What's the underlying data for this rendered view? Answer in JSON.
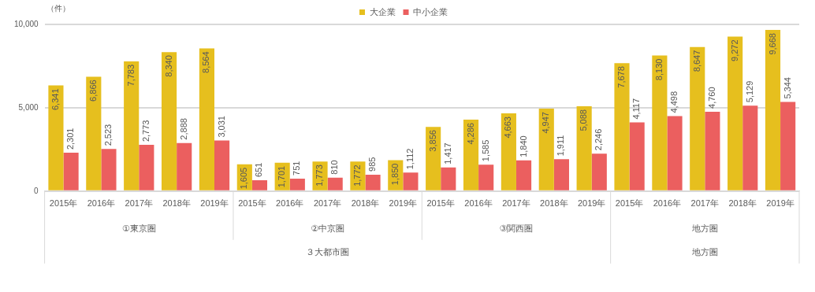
{
  "chart_data": {
    "type": "bar",
    "ylabel": "（件）",
    "categories": [
      "2015年",
      "2016年",
      "2017年",
      "2018年",
      "2019年",
      "2015年",
      "2016年",
      "2017年",
      "2018年",
      "2019年",
      "2015年",
      "2016年",
      "2017年",
      "2018年",
      "2019年",
      "2015年",
      "2016年",
      "2017年",
      "2018年",
      "2019年"
    ],
    "series": [
      {
        "name": "大企業",
        "color": "#e6bf1e",
        "values": [
          6341,
          6866,
          7783,
          8340,
          8564,
          1605,
          1701,
          1773,
          1772,
          1850,
          3856,
          4286,
          4663,
          4947,
          5088,
          7678,
          8130,
          8647,
          9272,
          9668
        ],
        "value_labels": [
          "6,341",
          "6,866",
          "7,783",
          "8,340",
          "8,564",
          "1,605",
          "1,701",
          "1,773",
          "1,772",
          "1,850",
          "3,856",
          "4,286",
          "4,663",
          "4,947",
          "5,088",
          "7,678",
          "8,130",
          "8,647",
          "9,272",
          "9,668"
        ]
      },
      {
        "name": "中小企業",
        "color": "#eb5f5f",
        "values": [
          2301,
          2523,
          2773,
          2888,
          3031,
          651,
          751,
          810,
          985,
          1112,
          1417,
          1585,
          1840,
          1911,
          2246,
          4117,
          4498,
          4760,
          5129,
          5344
        ],
        "value_labels": [
          "2,301",
          "2,523",
          "2,773",
          "2,888",
          "3,031",
          "651",
          "751",
          "810",
          "985",
          "1,112",
          "1,417",
          "1,585",
          "1,840",
          "1,911",
          "2,246",
          "4,117",
          "4,498",
          "4,760",
          "5,129",
          "5,344"
        ]
      }
    ],
    "ylim": [
      0,
      10000
    ],
    "yticks": [
      0,
      {
        "value": 5000,
        "label": "5,000"
      },
      {
        "value": 10000,
        "label": "10,000"
      }
    ],
    "grid": "y",
    "legend": "top",
    "annotations": [
      "①東京圏",
      "②中京圏",
      "③関西圏",
      "地方圏",
      "３大都市圏",
      "地方圏"
    ]
  }
}
